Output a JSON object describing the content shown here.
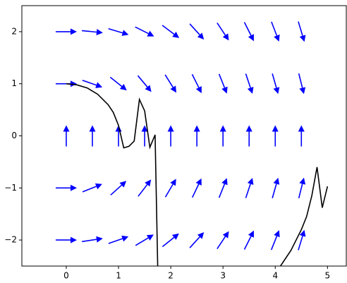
{
  "chart_data": {
    "type": "quiver",
    "xlim": [
      -0.85,
      5.36
    ],
    "ylim": [
      -2.5,
      2.5
    ],
    "xticks": [
      0,
      1,
      2,
      3,
      4,
      5
    ],
    "yticks": [
      {
        "value": -2,
        "label": "−2"
      },
      {
        "value": -1,
        "label": "−1"
      },
      0,
      1,
      2
    ],
    "quiver": {
      "color": "#0000ff",
      "x": [
        0,
        0.5,
        1,
        1.5,
        2,
        2.5,
        3,
        3.5,
        4,
        4.5,
        0,
        0.5,
        1,
        1.5,
        2,
        2.5,
        3,
        3.5,
        4,
        4.5,
        0,
        0.5,
        1,
        1.5,
        2,
        2.5,
        3,
        3.5,
        4,
        4.5,
        0,
        0.5,
        1,
        1.5,
        2,
        2.5,
        3,
        3.5,
        4,
        4.5,
        0,
        0.5,
        1,
        1.5,
        2,
        2.5,
        3,
        3.5,
        4,
        4.5
      ],
      "y": [
        2,
        2,
        2,
        2,
        2,
        2,
        2,
        2,
        2,
        2,
        1,
        1,
        1,
        1,
        1,
        1,
        1,
        1,
        1,
        1,
        0,
        0,
        0,
        0,
        0,
        0,
        0,
        0,
        0,
        0,
        -1,
        -1,
        -1,
        -1,
        -1,
        -1,
        -1,
        -1,
        -1,
        -1,
        -2,
        -2,
        -2,
        -2,
        -2,
        -2,
        -2,
        -2,
        -2,
        -2
      ],
      "u": [
        1,
        1,
        1,
        1,
        1,
        1,
        1,
        1,
        1,
        1,
        1,
        1,
        1,
        1,
        1,
        1,
        1,
        1,
        1,
        1,
        0,
        0,
        0,
        0,
        0,
        0,
        0,
        0,
        0,
        0,
        1,
        1,
        1,
        1,
        1,
        1,
        1,
        1,
        1,
        1,
        1,
        1,
        1,
        1,
        1,
        1,
        1,
        1,
        1,
        1
      ],
      "v": [
        0,
        -0.1,
        -0.3,
        -0.5,
        -0.75,
        -1.1,
        -1.5,
        -2,
        -2.6,
        -3.3,
        0,
        -0.35,
        -0.8,
        -1.2,
        -1.6,
        -2,
        -2.5,
        -3,
        -3.5,
        -4,
        1,
        1,
        1,
        1,
        1,
        1,
        1,
        1,
        1,
        1,
        0,
        0.4,
        0.9,
        1.3,
        1.7,
        2.1,
        2.5,
        3,
        3.5,
        4,
        0,
        0.15,
        0.35,
        0.6,
        0.8,
        1.1,
        1.5,
        2,
        2.5,
        3.3
      ]
    },
    "line": {
      "color": "#000000",
      "x": [
        0,
        0.2,
        0.4,
        0.6,
        0.8,
        0.9,
        1.0,
        1.1,
        1.2,
        1.3,
        1.4,
        1.5,
        1.6,
        1.7,
        1.75,
        3,
        4.1,
        4.3,
        4.5,
        4.6,
        4.7,
        4.8,
        4.9,
        5.0
      ],
      "y": [
        1,
        0.98,
        0.92,
        0.8,
        0.6,
        0.45,
        0.2,
        -0.23,
        -0.2,
        -0.1,
        0.7,
        0.48,
        -0.22,
        0.02,
        -2.5,
        null,
        -2.5,
        -2.2,
        -1.8,
        -1.55,
        -1.15,
        -0.6,
        -1.38,
        -0.97
      ]
    }
  }
}
